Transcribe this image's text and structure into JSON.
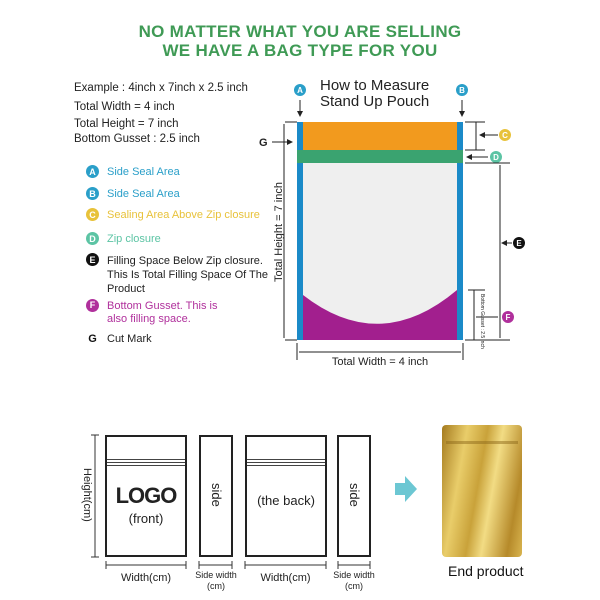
{
  "header": {
    "line1": "NO MATTER WHAT YOU ARE SELLING",
    "line2": "WE HAVE A BAG TYPE FOR YOU",
    "color": "#3f9a55"
  },
  "example": {
    "dims": "Example : 4inch x 7inch x 2.5 inch",
    "width": "Total Width = 4 inch",
    "height": "Total Height = 7 inch",
    "gusset": "Bottom Gusset : 2.5 inch"
  },
  "legend": [
    {
      "key": "A",
      "text": "Side Seal Area",
      "color": "#2a9fc9"
    },
    {
      "key": "B",
      "text": "Side Seal Area",
      "color": "#2a9fc9"
    },
    {
      "key": "C",
      "text": "Sealing Area Above Zip closure",
      "color": "#e8c23a"
    },
    {
      "key": "D",
      "text": "Zip closure",
      "color": "#5cc4a4"
    },
    {
      "key": "E",
      "text": "Filling Space Below Zip closure. This Is Total Filling Space Of The Product",
      "color": "#111111"
    },
    {
      "key": "F",
      "text": "Bottom Gusset. This is also filling space.",
      "color": "#b0309c"
    },
    {
      "key": "G",
      "text": "Cut Mark",
      "color": "#111111"
    }
  ],
  "diagram": {
    "title1": "How to Measure",
    "title2": "Stand Up Pouch",
    "total_height": "Total Height = 7 inch",
    "total_width": "Total Width = 4 inch",
    "gusset_label": "Bottom Gusset : 2.5 inch",
    "colors": {
      "side_seal": "#1b8ac8",
      "top_seal": "#f29a1e",
      "zip": "#3aa370",
      "body": "#efefef",
      "gusset": "#a21f8e"
    }
  },
  "panels": {
    "front_logo": "LOGO",
    "front_label": "(front)",
    "side": "side",
    "back": "(the back)",
    "height_label": "Height(cm)",
    "width_label": "Width(cm)",
    "side_width_label1": "Side width",
    "side_width_label2": "(cm)",
    "end_product": "End product",
    "arrow_color": "#6cc7d3"
  }
}
